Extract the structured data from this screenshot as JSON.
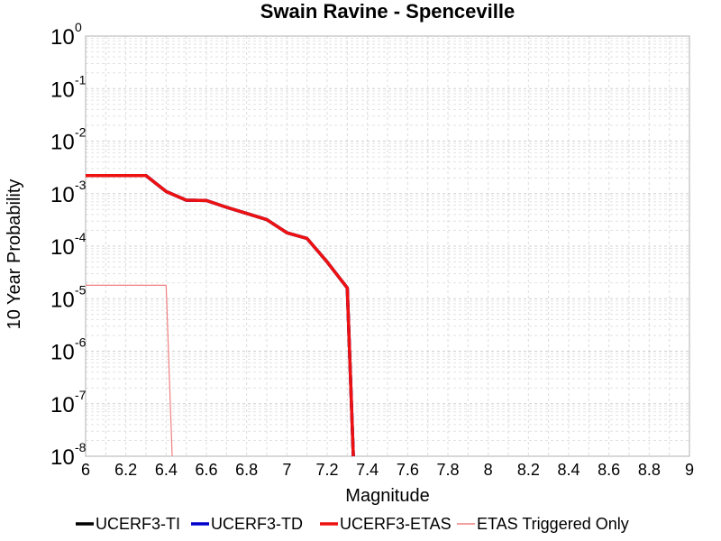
{
  "chart_data": {
    "type": "line",
    "title": "Swain Ravine - Spenceville",
    "xlabel": "Magnitude",
    "ylabel": "10 Year Probability",
    "y_scale": "log",
    "xlim": [
      6,
      9
    ],
    "ylim": [
      1e-08,
      1
    ],
    "x_ticks": [
      "6",
      "6.2",
      "6.4",
      "6.6",
      "6.8",
      "7",
      "7.2",
      "7.4",
      "7.6",
      "7.8",
      "8",
      "8.2",
      "8.4",
      "8.6",
      "8.8",
      "9"
    ],
    "y_ticks": [
      {
        "base": "10",
        "exp": "0"
      },
      {
        "base": "10",
        "exp": "-1"
      },
      {
        "base": "10",
        "exp": "-2"
      },
      {
        "base": "10",
        "exp": "-3"
      },
      {
        "base": "10",
        "exp": "-4"
      },
      {
        "base": "10",
        "exp": "-5"
      },
      {
        "base": "10",
        "exp": "-6"
      },
      {
        "base": "10",
        "exp": "-7"
      },
      {
        "base": "10",
        "exp": "-8"
      }
    ],
    "grid": true,
    "legend_position": "bottom",
    "series": [
      {
        "name": "UCERF3-TI",
        "color": "#000000",
        "style": "thick",
        "x": [
          6.0,
          6.1,
          6.2,
          6.3,
          6.4,
          6.5,
          6.6,
          6.7,
          6.8,
          6.9,
          7.0,
          7.1,
          7.2,
          7.3,
          7.33
        ],
        "y": [
          0.0022,
          0.0022,
          0.0022,
          0.0022,
          0.0011,
          0.00075,
          0.00074,
          0.00055,
          0.00042,
          0.00032,
          0.00018,
          0.00014,
          5e-05,
          1.6e-05,
          1e-08
        ]
      },
      {
        "name": "UCERF3-TD",
        "color": "#0000cc",
        "style": "thick",
        "x": [
          6.0,
          6.1,
          6.2,
          6.3,
          6.4,
          6.5,
          6.6,
          6.7,
          6.8,
          6.9,
          7.0,
          7.1,
          7.2,
          7.3,
          7.33
        ],
        "y": [
          0.0022,
          0.0022,
          0.0022,
          0.0022,
          0.0011,
          0.00075,
          0.00074,
          0.00055,
          0.00042,
          0.00032,
          0.00018,
          0.00014,
          5e-05,
          1.6e-05,
          1e-08
        ]
      },
      {
        "name": "UCERF3-ETAS",
        "color": "#ee1111",
        "style": "thick",
        "x": [
          6.0,
          6.1,
          6.2,
          6.3,
          6.4,
          6.5,
          6.6,
          6.7,
          6.8,
          6.9,
          7.0,
          7.1,
          7.2,
          7.3,
          7.33
        ],
        "y": [
          0.0022,
          0.0022,
          0.0022,
          0.0022,
          0.0011,
          0.00075,
          0.00074,
          0.00055,
          0.00042,
          0.00032,
          0.00018,
          0.00014,
          5e-05,
          1.6e-05,
          1e-08
        ]
      },
      {
        "name": "ETAS Triggered Only",
        "color": "#f08080",
        "style": "thin",
        "x": [
          6.0,
          6.1,
          6.2,
          6.3,
          6.4,
          6.43
        ],
        "y": [
          1.8e-05,
          1.8e-05,
          1.8e-05,
          1.8e-05,
          1.8e-05,
          1e-08
        ]
      }
    ]
  }
}
